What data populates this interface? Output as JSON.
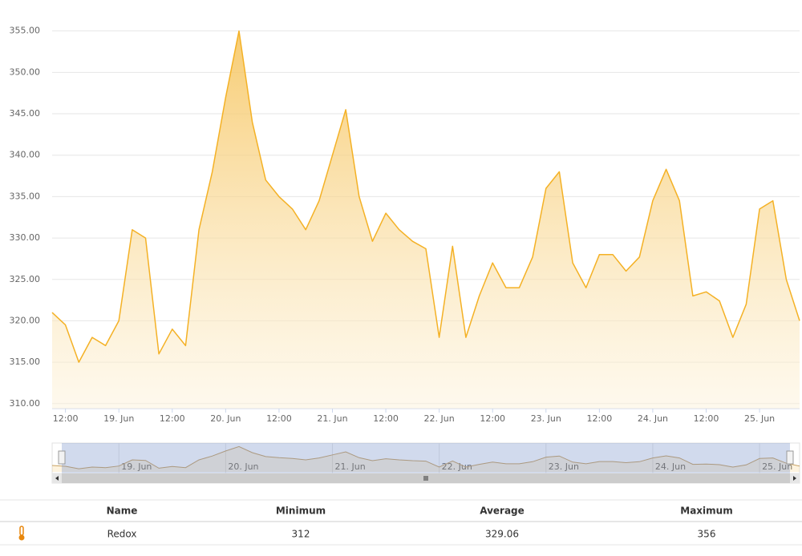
{
  "chart_data": {
    "type": "area",
    "x": [
      "18. Jun 09:00",
      "18. Jun 12:00",
      "18. Jun 15:00",
      "18. Jun 18:00",
      "18. Jun 21:00",
      "19. Jun 00:00",
      "19. Jun 03:00",
      "19. Jun 06:00",
      "19. Jun 09:00",
      "19. Jun 12:00",
      "19. Jun 15:00",
      "19. Jun 18:00",
      "19. Jun 21:00",
      "20. Jun 00:00",
      "20. Jun 03:00",
      "20. Jun 06:00",
      "20. Jun 09:00",
      "20. Jun 12:00",
      "20. Jun 15:00",
      "20. Jun 18:00",
      "20. Jun 21:00",
      "21. Jun 00:00",
      "21. Jun 03:00",
      "21. Jun 06:00",
      "21. Jun 09:00",
      "21. Jun 12:00",
      "21. Jun 15:00",
      "21. Jun 18:00",
      "21. Jun 21:00",
      "22. Jun 00:00",
      "22. Jun 03:00",
      "22. Jun 06:00",
      "22. Jun 09:00",
      "22. Jun 12:00",
      "22. Jun 15:00",
      "22. Jun 18:00",
      "22. Jun 21:00",
      "23. Jun 00:00",
      "23. Jun 03:00",
      "23. Jun 06:00",
      "23. Jun 09:00",
      "23. Jun 12:00",
      "23. Jun 15:00",
      "23. Jun 18:00",
      "23. Jun 21:00",
      "24. Jun 00:00",
      "24. Jun 03:00",
      "24. Jun 06:00",
      "24. Jun 09:00",
      "24. Jun 12:00",
      "24. Jun 15:00",
      "24. Jun 18:00",
      "24. Jun 21:00",
      "25. Jun 00:00",
      "25. Jun 03:00",
      "25. Jun 06:00",
      "25. Jun 09:00"
    ],
    "series": [
      {
        "name": "Redox",
        "color": "#f4b125",
        "values": [
          321,
          319.5,
          315,
          318,
          317,
          320,
          331,
          330,
          316,
          319,
          317,
          331,
          338,
          347,
          355,
          344,
          337,
          335,
          333.5,
          331,
          334.5,
          340,
          345.5,
          335,
          329.6,
          333,
          331,
          329.6,
          328.7,
          318,
          329,
          318,
          323,
          327,
          324,
          324,
          327.7,
          336,
          338,
          327,
          324,
          328,
          328,
          326,
          327.7,
          334.5,
          338.3,
          334.5,
          323,
          323.5,
          322.4,
          318,
          322,
          333.5,
          334.5,
          325,
          320
        ]
      }
    ],
    "ylim": [
      309.4,
      357
    ],
    "yticks": [
      {
        "value": 310,
        "label": "310.00"
      },
      {
        "value": 315,
        "label": "315.00"
      },
      {
        "value": 320,
        "label": "320.00"
      },
      {
        "value": 325,
        "label": "325.00"
      },
      {
        "value": 330,
        "label": "330.00"
      },
      {
        "value": 335,
        "label": "335.00"
      },
      {
        "value": 340,
        "label": "340.00"
      },
      {
        "value": 345,
        "label": "345.00"
      },
      {
        "value": 350,
        "label": "350.00"
      },
      {
        "value": 355,
        "label": "355.00"
      }
    ],
    "xticks": [
      {
        "value": "18. Jun 12:00",
        "label": "12:00"
      },
      {
        "value": "19. Jun 00:00",
        "label": "19. Jun"
      },
      {
        "value": "19. Jun 12:00",
        "label": "12:00"
      },
      {
        "value": "20. Jun 00:00",
        "label": "20. Jun"
      },
      {
        "value": "20. Jun 12:00",
        "label": "12:00"
      },
      {
        "value": "21. Jun 00:00",
        "label": "21. Jun"
      },
      {
        "value": "21. Jun 12:00",
        "label": "12:00"
      },
      {
        "value": "22. Jun 00:00",
        "label": "22. Jun"
      },
      {
        "value": "22. Jun 12:00",
        "label": "12:00"
      },
      {
        "value": "23. Jun 00:00",
        "label": "23. Jun"
      },
      {
        "value": "23. Jun 12:00",
        "label": "12:00"
      },
      {
        "value": "24. Jun 00:00",
        "label": "24. Jun"
      },
      {
        "value": "24. Jun 12:00",
        "label": "12:00"
      },
      {
        "value": "25. Jun 00:00",
        "label": "25. Jun"
      }
    ],
    "grid": true
  },
  "table": {
    "columns": [
      "Name",
      "Minimum",
      "Average",
      "Maximum"
    ],
    "rows": [
      [
        "Redox",
        312,
        329.06,
        356
      ]
    ]
  }
}
